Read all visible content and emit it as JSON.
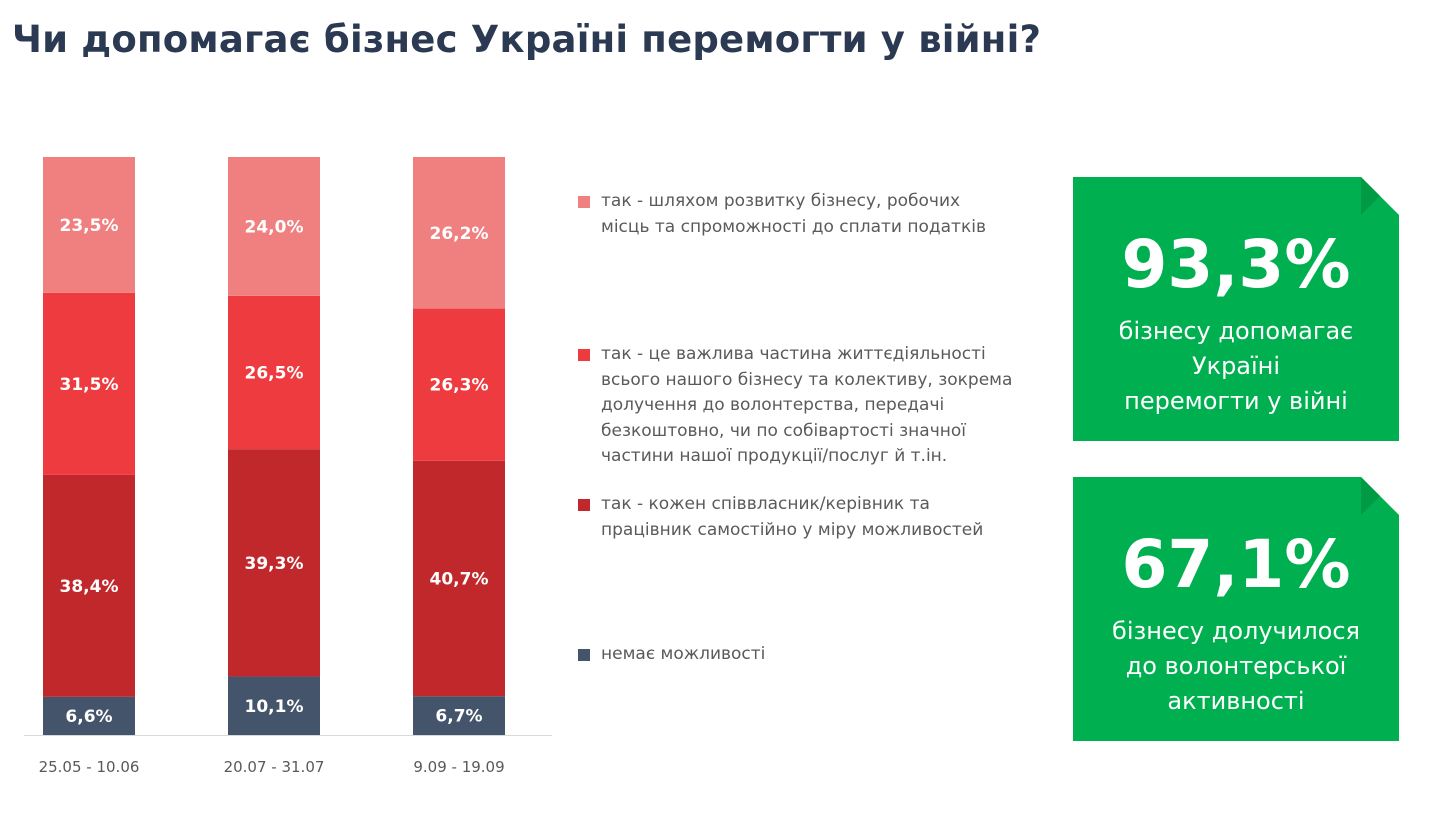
{
  "title": "Чи допомагає бізнес Україні перемогти у війні?",
  "chart_data": {
    "type": "bar",
    "stacked": true,
    "categories": [
      "25.05 - 10.06",
      "20.07 - 31.07",
      "9.09 - 19.09"
    ],
    "series": [
      {
        "name": "немає можливості",
        "values": [
          6.6,
          10.1,
          6.7
        ],
        "labels": [
          "6,6%",
          "10,1%",
          "6,7%"
        ],
        "color": "#44546a"
      },
      {
        "name": "так - кожен співвласник/керівник та працівник самостійно у міру можливостей",
        "values": [
          38.4,
          39.3,
          40.7
        ],
        "labels": [
          "38,4%",
          "39,3%",
          "40,7%"
        ],
        "color": "#c0282b"
      },
      {
        "name": "так - це важлива частина життєдіяльності всього нашого бізнесу та колективу, зокрема долучення до волонтерства, передачі безкоштовно, чи по собівартості значної частини нашої продукції/послуг й т.ін.",
        "values": [
          31.5,
          26.5,
          26.3
        ],
        "labels": [
          "31,5%",
          "26,5%",
          "26,3%"
        ],
        "color": "#ee3b3f"
      },
      {
        "name": "так - шляхом розвитку бізнесу, робочих місць та спроможності до сплати податків",
        "values": [
          23.5,
          24.0,
          26.2
        ],
        "labels": [
          "23,5%",
          "24,0%",
          "26,2%"
        ],
        "color": "#f08080"
      }
    ],
    "grid": false,
    "legend_placement": "right"
  },
  "legend": [
    {
      "text": "так - шляхом розвитку бізнесу, робочих\nмісць та спроможності до сплати податків",
      "color": "#f08080"
    },
    {
      "text": "так - це важлива частина життєдіяльності\nвсього нашого бізнесу та колективу, зокрема\nдолучення до волонтерства, передачі\nбезкоштовно, чи по собівартості значної\nчастини нашої продукції/послуг й т.ін.",
      "color": "#ee3b3f"
    },
    {
      "text": "так - кожен співвласник/керівник та\nпрацівник самостійно у міру можливостей",
      "color": "#c0282b"
    },
    {
      "text": "немає можливості",
      "color": "#44546a"
    }
  ],
  "cards": [
    {
      "value": "93,3%",
      "text": "бізнесу допомагає\nУкраїні\nперемогти у війні"
    },
    {
      "value": "67,1%",
      "text": "бізнесу долучилося\nдо волонтерської\nактивності"
    }
  ],
  "colors": {
    "card_green": "#00b050",
    "title": "#2b3a52"
  }
}
